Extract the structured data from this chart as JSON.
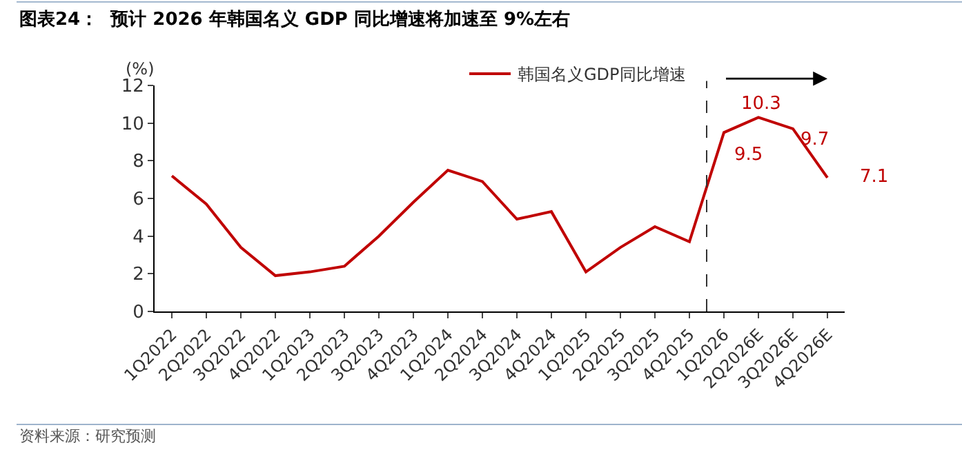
{
  "chart_data": {
    "type": "line",
    "title": "图表24：  预计 2026 年韩国名义 GDP 同比增速将加速至 9%左右",
    "ylabel": "(%)",
    "categories": [
      "1Q2022",
      "2Q2022",
      "3Q2022",
      "4Q2022",
      "1Q2023",
      "2Q2023",
      "3Q2023",
      "4Q2023",
      "1Q2024",
      "2Q2024",
      "3Q2024",
      "4Q2024",
      "1Q2025",
      "2Q2025",
      "3Q2025",
      "4Q2025",
      "1Q2026",
      "2Q2026E",
      "3Q2026E",
      "4Q2026E"
    ],
    "series": [
      {
        "name": "韩国名义GDP同比增速",
        "color": "#c00000",
        "values": [
          7.2,
          5.7,
          3.4,
          1.9,
          2.1,
          2.4,
          4.0,
          5.8,
          7.5,
          6.9,
          4.9,
          5.3,
          2.1,
          3.4,
          4.5,
          3.7,
          9.5,
          10.3,
          9.7,
          7.1
        ],
        "value_labels": [
          null,
          null,
          null,
          null,
          null,
          null,
          null,
          null,
          null,
          null,
          null,
          null,
          null,
          null,
          null,
          null,
          "9.5",
          "10.3",
          "9.7",
          "7.1"
        ]
      }
    ],
    "ylim": [
      0,
      12
    ],
    "yticks": [
      0,
      2,
      4,
      6,
      8,
      10,
      12
    ],
    "legend": "top right",
    "marker": "none",
    "line_style": "solid",
    "annotations": [
      "资料来源：研究预测"
    ]
  }
}
